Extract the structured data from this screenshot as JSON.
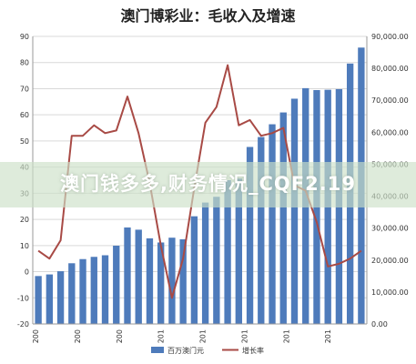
{
  "page": {
    "title": "澳门博彩业：毛收入及增速",
    "watermark": "澳门钱多多,财务情况_CQF2.19"
  },
  "legend": {
    "bar_label": "百万澳门元",
    "line_label": "增长率"
  },
  "colors": {
    "bar": "#4e7bbb",
    "line": "#a84a45",
    "grid": "#d9d9d9",
    "axis": "#999999"
  },
  "chart_data": {
    "type": "bar",
    "title": "澳门博彩业：毛收入及增速",
    "xlabel": "",
    "ylabel": "",
    "left_axis": {
      "ylim": [
        -20,
        90
      ],
      "ticks": [
        "-20",
        "-10",
        "0",
        "10",
        "20",
        "30",
        "40",
        "50",
        "60",
        "70",
        "80",
        "90"
      ]
    },
    "right_axis": {
      "ylim": [
        0,
        90000
      ],
      "ticks": [
        "0.00",
        "10,000.00",
        "20,000.00",
        "30,000.00",
        "40,000.00",
        "50,000.00",
        "60,000.00",
        "70,000.00",
        "80,000.00",
        "90,000.00"
      ]
    },
    "x_tick_labels": [
      "200",
      "200",
      "200",
      "201",
      "201",
      "201",
      "201",
      "201"
    ],
    "grid": true,
    "legend_position": "bottom",
    "series": [
      {
        "name": "百万澳门元",
        "axis": "right",
        "kind": "bar",
        "values": [
          15000,
          15500,
          16500,
          19000,
          20300,
          21000,
          21500,
          24500,
          30200,
          29500,
          26800,
          25500,
          27000,
          26500,
          33700,
          38000,
          39800,
          45000,
          45500,
          55400,
          58500,
          62500,
          66200,
          70500,
          73800,
          73200,
          73300,
          73500,
          81500,
          86500
        ]
      },
      {
        "name": "增长率",
        "axis": "left",
        "kind": "line",
        "values": [
          8,
          5,
          12,
          52,
          52,
          56,
          53,
          54,
          67,
          53,
          34,
          10,
          -10,
          5,
          32,
          57,
          63,
          79,
          56,
          58,
          52,
          53,
          55,
          33,
          31,
          19,
          2,
          3,
          5,
          8
        ]
      }
    ]
  }
}
